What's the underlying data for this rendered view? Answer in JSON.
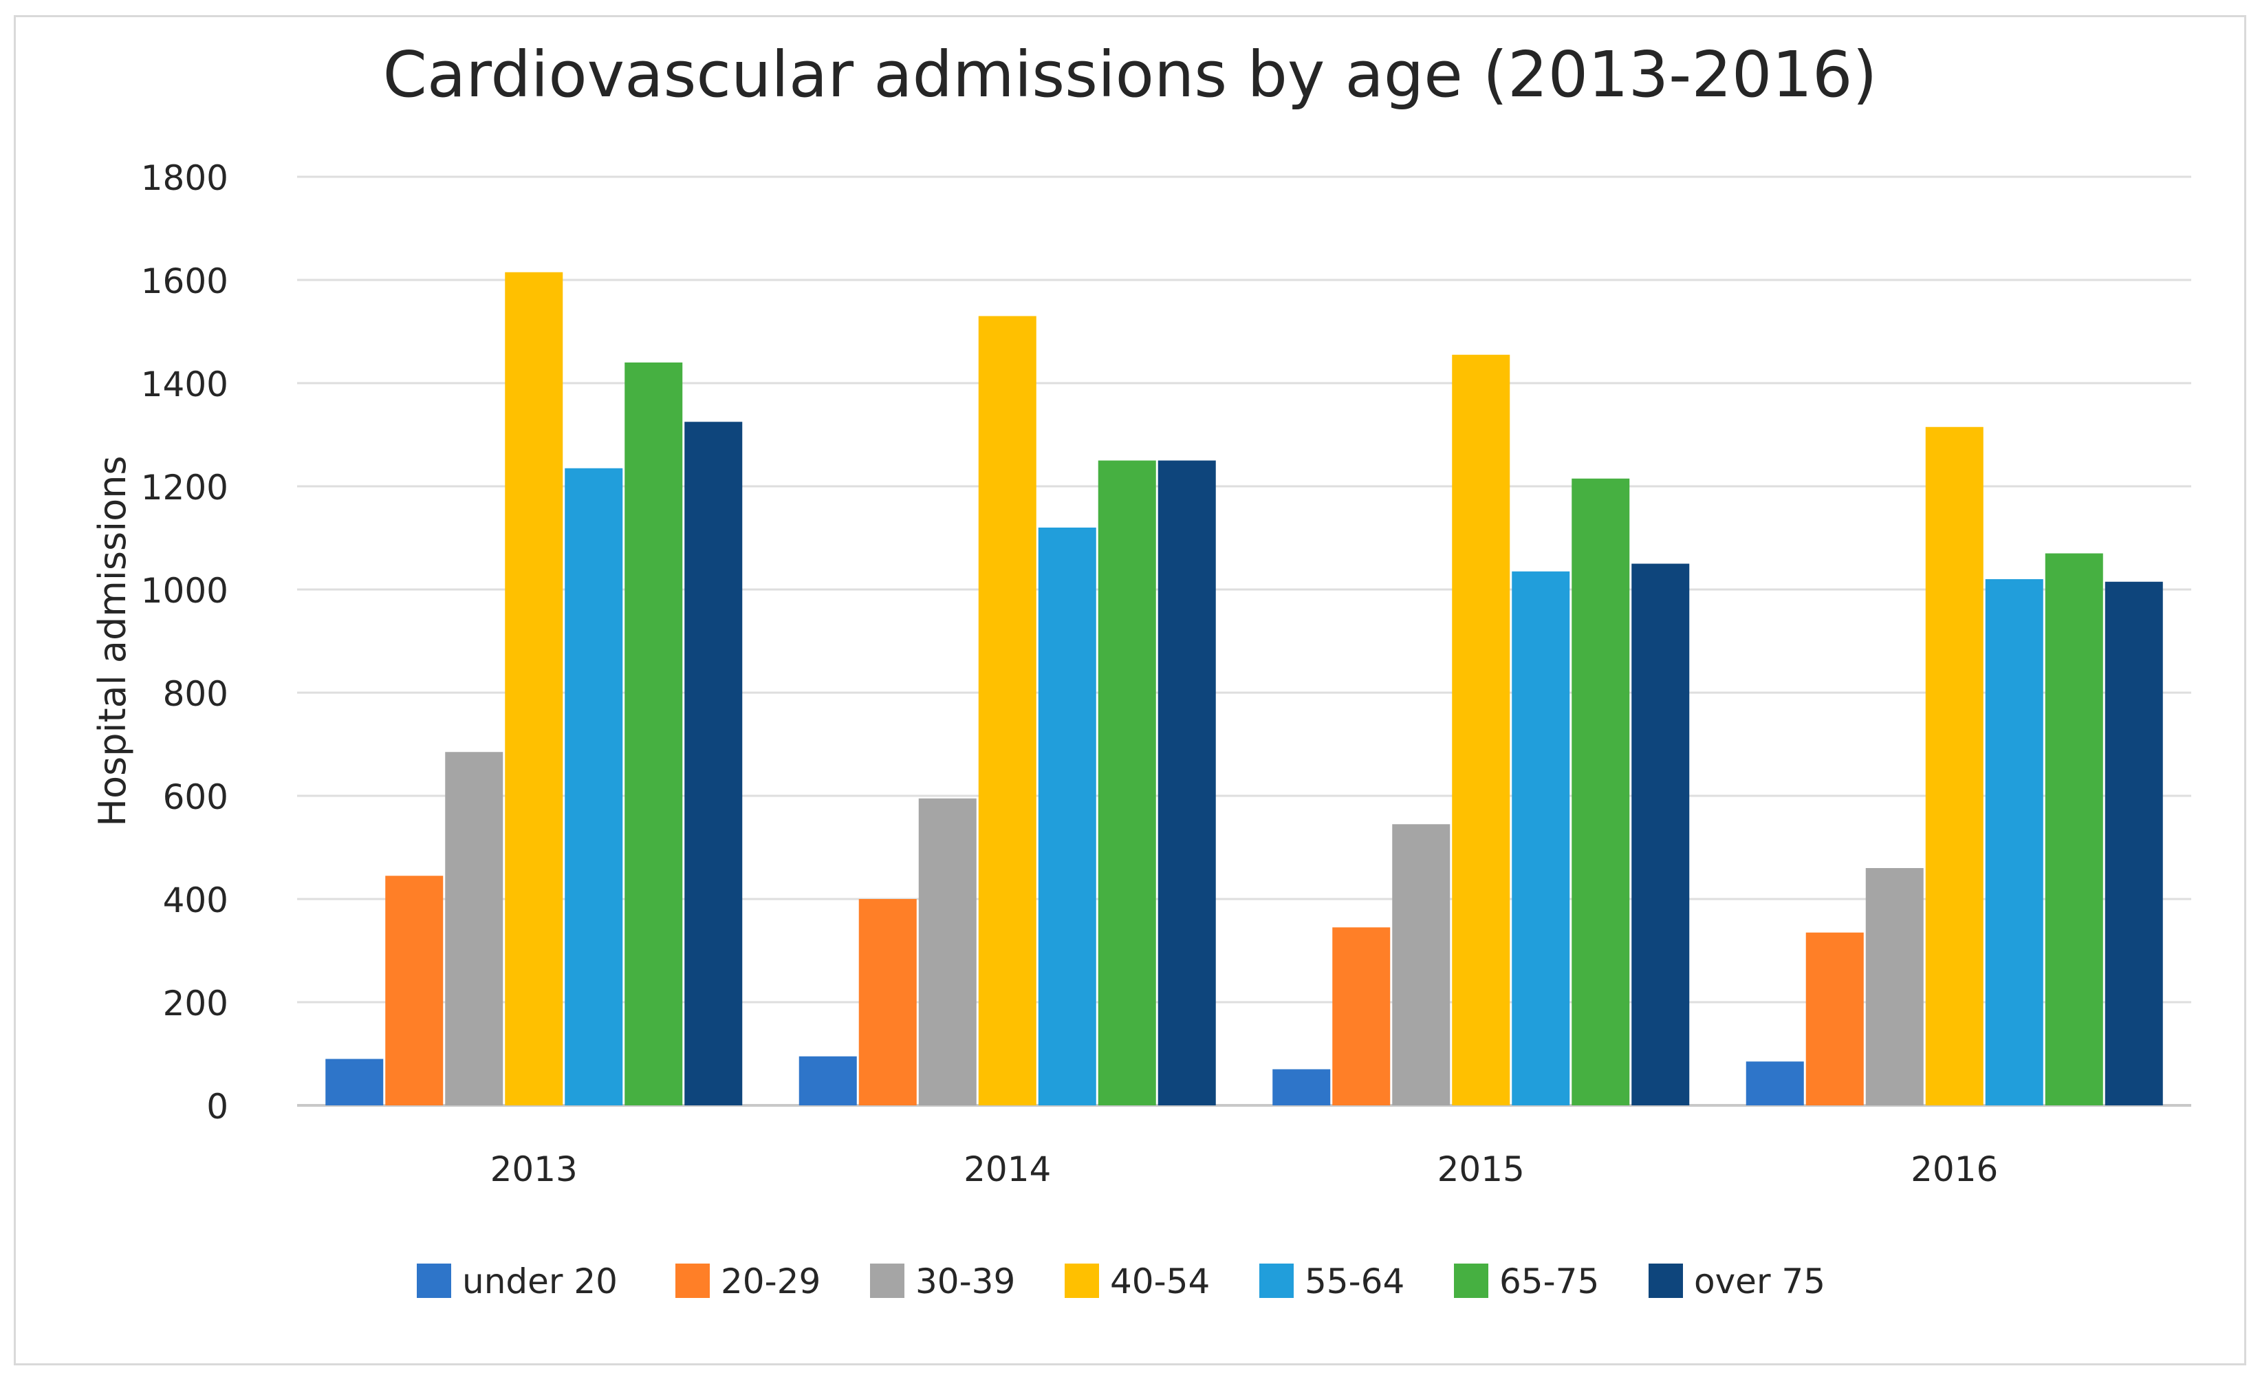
{
  "chart_data": {
    "type": "bar",
    "title": "Cardiovascular admissions by age (2013-2016)",
    "xlabel": "",
    "ylabel": "Hospital admissions",
    "ylim": [
      0,
      1800
    ],
    "yticks": [
      0,
      200,
      400,
      600,
      800,
      1000,
      1200,
      1400,
      1600,
      1800
    ],
    "grid": true,
    "legend_position": "bottom",
    "categories": [
      "2013",
      "2014",
      "2015",
      "2016"
    ],
    "series": [
      {
        "name": "under 20",
        "color": "#2E75C9",
        "values": [
          90,
          95,
          70,
          85
        ]
      },
      {
        "name": "20-29",
        "color": "#FF7F27",
        "values": [
          445,
          400,
          345,
          335
        ]
      },
      {
        "name": "30-39",
        "color": "#A5A5A5",
        "values": [
          685,
          595,
          545,
          460
        ]
      },
      {
        "name": "40-54",
        "color": "#FFC000",
        "values": [
          1615,
          1530,
          1455,
          1315
        ]
      },
      {
        "name": "55-64",
        "color": "#219EDB",
        "values": [
          1235,
          1120,
          1035,
          1020
        ]
      },
      {
        "name": "65-75",
        "color": "#46B041",
        "values": [
          1440,
          1250,
          1215,
          1070
        ]
      },
      {
        "name": "over 75",
        "color": "#0E457C",
        "values": [
          1325,
          1250,
          1050,
          1015
        ]
      }
    ]
  }
}
